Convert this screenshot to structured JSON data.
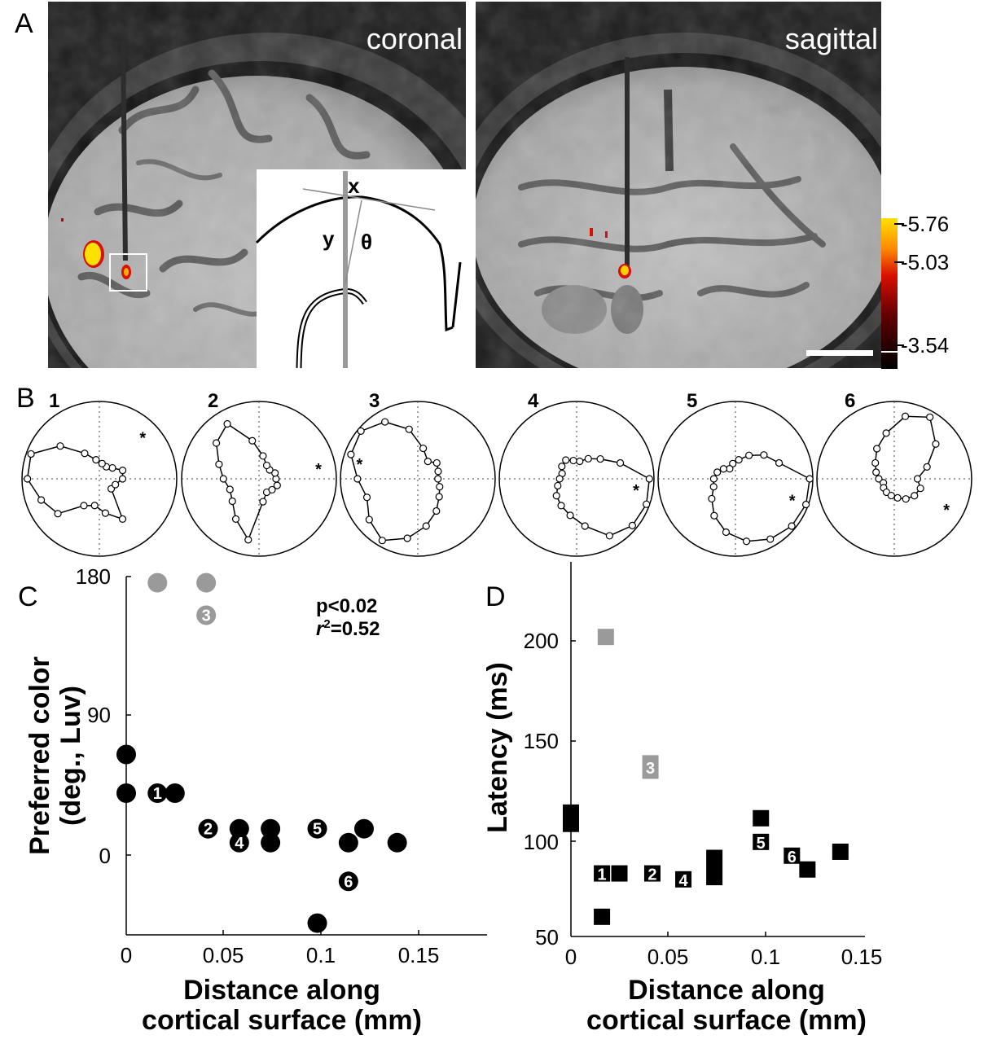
{
  "panels": {
    "A": "A",
    "B": "B",
    "C": "C",
    "D": "D"
  },
  "panel_a": {
    "left_label": "coronal",
    "right_label": "sagittal",
    "inset": {
      "x": "x",
      "y": "y",
      "theta": "θ"
    },
    "colorbar": {
      "ticks": [
        "-5.76",
        "-5.03",
        "-3.54"
      ],
      "colors": [
        "#ffe000",
        "#ff7a00",
        "#d81000",
        "#600000",
        "#000000"
      ]
    }
  },
  "panel_b": {
    "labels": [
      "1",
      "2",
      "3",
      "4",
      "5",
      "6"
    ]
  },
  "panel_c": {
    "ylabel_line1": "Preferred color",
    "ylabel_line2": "(deg., Luv)",
    "xlabel_line1": "Distance along",
    "xlabel_line2": "cortical surface (mm)",
    "stat_p": "p<0.02",
    "stat_r_sym": "r",
    "stat_r_exp": "2",
    "stat_r_val": "=0.52",
    "xticks": [
      "0",
      "0.05",
      "0.1",
      "0.15"
    ],
    "yticks": [
      "180",
      "90",
      "0"
    ]
  },
  "panel_d": {
    "ylabel": "Latency (ms)",
    "xlabel_line1": "Distance along",
    "xlabel_line2": "cortical surface (mm)",
    "xticks": [
      "0",
      "0.05",
      "0.1",
      "0.15"
    ],
    "yticks": [
      "200",
      "150",
      "100",
      "50"
    ]
  },
  "chart_data": [
    {
      "type": "scatter",
      "xlabel": "Distance along cortical surface (mm)",
      "ylabel": "Preferred color (deg., Luv)",
      "xlim": [
        0,
        0.185
      ],
      "ylim": [
        -52,
        180
      ],
      "xticks": [
        0,
        0.05,
        0.1,
        0.15
      ],
      "yticks": [
        0,
        90,
        180
      ],
      "annotation": [
        "p<0.02",
        "r2=0.52"
      ],
      "points": [
        {
          "x": 0.0,
          "y": 65,
          "color": "black"
        },
        {
          "x": 0.0,
          "y": 40,
          "color": "black"
        },
        {
          "x": 0.016,
          "y": 40,
          "color": "black",
          "label": "1"
        },
        {
          "x": 0.025,
          "y": 40,
          "color": "black"
        },
        {
          "x": 0.042,
          "y": 17,
          "color": "black",
          "label": "2"
        },
        {
          "x": 0.058,
          "y": 17,
          "color": "black"
        },
        {
          "x": 0.058,
          "y": 8,
          "color": "black",
          "label": "4"
        },
        {
          "x": 0.074,
          "y": 17,
          "color": "black"
        },
        {
          "x": 0.074,
          "y": 8,
          "color": "black"
        },
        {
          "x": 0.098,
          "y": 17,
          "color": "black",
          "label": "5"
        },
        {
          "x": 0.098,
          "y": -44,
          "color": "black"
        },
        {
          "x": 0.114,
          "y": 8,
          "color": "black"
        },
        {
          "x": 0.114,
          "y": -17,
          "color": "black",
          "label": "6"
        },
        {
          "x": 0.122,
          "y": 17,
          "color": "black"
        },
        {
          "x": 0.139,
          "y": 8,
          "color": "black"
        },
        {
          "x": 0.016,
          "y": 176,
          "color": "gray"
        },
        {
          "x": 0.041,
          "y": 176,
          "color": "gray"
        },
        {
          "x": 0.041,
          "y": 155,
          "color": "gray",
          "label": "3"
        }
      ]
    },
    {
      "type": "scatter",
      "xlabel": "Distance along cortical surface (mm)",
      "ylabel": "Latency (ms)",
      "xlim": [
        0,
        0.15
      ],
      "ylim": [
        50,
        250
      ],
      "xticks": [
        0,
        0.05,
        0.1,
        0.15
      ],
      "yticks": [
        50,
        100,
        150,
        200
      ],
      "marker": "square",
      "points": [
        {
          "x": 0.0,
          "y": 110,
          "ylo": 103,
          "yhi": 117,
          "color": "black"
        },
        {
          "x": 0.016,
          "y": 82,
          "color": "black",
          "label": "1"
        },
        {
          "x": 0.016,
          "y": 60,
          "color": "black"
        },
        {
          "x": 0.025,
          "y": 82,
          "ylo": 78,
          "yhi": 86,
          "color": "black"
        },
        {
          "x": 0.042,
          "y": 82,
          "color": "black",
          "label": "2"
        },
        {
          "x": 0.058,
          "y": 79,
          "color": "black",
          "label": "4"
        },
        {
          "x": 0.074,
          "y": 85,
          "ylo": 76,
          "yhi": 94,
          "color": "black"
        },
        {
          "x": 0.098,
          "y": 110,
          "color": "black"
        },
        {
          "x": 0.098,
          "y": 98,
          "color": "black",
          "label": "5"
        },
        {
          "x": 0.114,
          "y": 91,
          "color": "black",
          "label": "6"
        },
        {
          "x": 0.122,
          "y": 84,
          "color": "black"
        },
        {
          "x": 0.139,
          "y": 93,
          "color": "black"
        },
        {
          "x": 0.018,
          "y": 202,
          "color": "gray"
        },
        {
          "x": 0.041,
          "y": 136,
          "ylo": 130,
          "yhi": 142,
          "color": "gray",
          "label": "3"
        }
      ]
    },
    {
      "type": "polar",
      "description_free": true,
      "panels": [
        {
          "label": "1",
          "r": [
            0.3,
            0.32,
            0.22,
            0.18,
            0.2,
            0.25,
            0.38,
            0.66,
            0.94,
            0.93,
            0.8,
            0.7,
            0.4,
            0.35,
            0.45,
            0.6,
            0.2,
            0.22
          ],
          "star_deg": 44
        },
        {
          "label": "2",
          "r": [
            0.22,
            0.22,
            0.18,
            0.2,
            0.3,
            0.5,
            0.82,
            0.72,
            0.55,
            0.46,
            0.4,
            0.45,
            0.6,
            0.8,
            0.3,
            0.2,
            0.22,
            0.25
          ],
          "star_deg": 10
        },
        {
          "label": "3",
          "r": [
            0.26,
            0.28,
            0.32,
            0.26,
            0.4,
            0.65,
            0.85,
            0.96,
            0.92,
            0.78,
            0.7,
            0.82,
            0.92,
            0.78,
            0.62,
            0.48,
            0.36,
            0.3
          ],
          "star_deg": 165
        },
        {
          "label": "4",
          "r": [
            0.94,
            0.6,
            0.4,
            0.3,
            0.23,
            0.24,
            0.28,
            0.25,
            0.2,
            0.22,
            0.26,
            0.34,
            0.4,
            0.48,
            0.62,
            0.85,
            0.94,
            0.96
          ],
          "star_deg": 350
        },
        {
          "label": "5",
          "r": [
            0.96,
            0.6,
            0.48,
            0.35,
            0.25,
            0.2,
            0.15,
            0.2,
            0.25,
            0.28,
            0.3,
            0.4,
            0.55,
            0.7,
            0.82,
            0.9,
            0.95,
            0.97
          ],
          "star_deg": 340
        },
        {
          "label": "6",
          "r": [
            0.3,
            0.45,
            0.7,
            0.92,
            0.82,
            0.6,
            0.45,
            0.32,
            0.25,
            0.2,
            0.15,
            0.18,
            0.2,
            0.22,
            0.25,
            0.3,
            0.34,
            0.36
          ],
          "star_deg": 330
        }
      ]
    }
  ]
}
